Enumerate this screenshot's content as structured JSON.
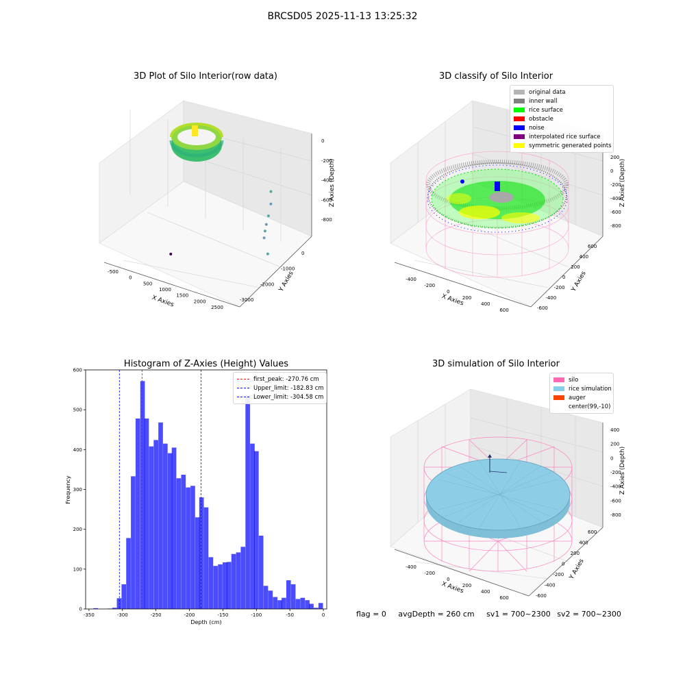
{
  "figure": {
    "suptitle": "BRCSD05 2025-11-13 13:25:32",
    "status": {
      "flag": "flag = 0",
      "avg_depth": "avgDepth = 260 cm",
      "sv1": "sv1 = 700~2300",
      "sv2": "sv2 = 700~2300"
    }
  },
  "chart_data": [
    {
      "type": "scatter",
      "title": "3D Plot of Silo Interior(row data)",
      "xlabel": "X Axies",
      "ylabel": "Y Axies",
      "zlabel": "Z Axies (Depth)",
      "x_ticks": [
        "-500",
        "0",
        "500",
        "1000",
        "1500",
        "2000",
        "2500"
      ],
      "y_ticks": [
        "-3000",
        "-2000",
        "-1000",
        "0"
      ],
      "z_ticks": [
        "0",
        "-200",
        "-400",
        "-600",
        "-800"
      ],
      "colormap": "viridis",
      "outlier_points": [
        {
          "x": 2150,
          "y": -500,
          "z": -430
        },
        {
          "x": 2200,
          "y": -600,
          "z": -520
        },
        {
          "x": 2300,
          "y": -900,
          "z": -560
        },
        {
          "x": 2300,
          "y": -1000,
          "z": -620
        },
        {
          "x": 2320,
          "y": -1100,
          "z": -660
        },
        {
          "x": 2350,
          "y": -1200,
          "z": -700
        },
        {
          "x": 2600,
          "y": -1500,
          "z": -760
        },
        {
          "x": 700,
          "y": -2500,
          "z": -800
        }
      ]
    },
    {
      "type": "scatter",
      "title": "3D classify of Silo Interior",
      "xlabel": "X Axies",
      "ylabel": "Y Axies",
      "zlabel": "Z Axies (Depth)",
      "x_ticks": [
        "-400",
        "-200",
        "0",
        "200",
        "400",
        "600"
      ],
      "y_ticks": [
        "-600",
        "-400",
        "-200",
        "0",
        "200",
        "400",
        "600"
      ],
      "z_ticks": [
        "200",
        "0",
        "-200",
        "-400",
        "-600",
        "-800"
      ],
      "legend": [
        {
          "label": "original data",
          "color": "#b4b4b4"
        },
        {
          "label": "inner wall",
          "color": "#808080"
        },
        {
          "label": "rice surface",
          "color": "#00ff00"
        },
        {
          "label": "obstacle",
          "color": "#ff0000"
        },
        {
          "label": "noise",
          "color": "#0000ff"
        },
        {
          "label": "interpolated rice surface",
          "color": "#800080"
        },
        {
          "label": "symmetric generated points",
          "color": "#ffff00"
        }
      ]
    },
    {
      "type": "bar",
      "title": "Histogram of Z-Axies (Height) Values",
      "xlabel": "Depth (cm)",
      "ylabel": "Frequency",
      "xlim": [
        -355,
        5
      ],
      "ylim": [
        0,
        600
      ],
      "x_ticks": [
        -350,
        -300,
        -250,
        -200,
        -150,
        -100,
        -50,
        0
      ],
      "y_ticks": [
        0,
        100,
        200,
        300,
        400,
        500,
        600
      ],
      "bar_color": "#0000ff",
      "bin_width": 6.8,
      "bins": [
        {
          "x": -340,
          "count": 2
        },
        {
          "x": -333,
          "count": 0
        },
        {
          "x": -326,
          "count": 0
        },
        {
          "x": -319,
          "count": 1
        },
        {
          "x": -312,
          "count": 3
        },
        {
          "x": -305,
          "count": 27
        },
        {
          "x": -298,
          "count": 62
        },
        {
          "x": -291,
          "count": 178
        },
        {
          "x": -284,
          "count": 333
        },
        {
          "x": -277,
          "count": 478
        },
        {
          "x": -270,
          "count": 572
        },
        {
          "x": -264,
          "count": 478
        },
        {
          "x": -257,
          "count": 408
        },
        {
          "x": -250,
          "count": 424
        },
        {
          "x": -243,
          "count": 468
        },
        {
          "x": -236,
          "count": 415
        },
        {
          "x": -229,
          "count": 391
        },
        {
          "x": -223,
          "count": 405
        },
        {
          "x": -216,
          "count": 328
        },
        {
          "x": -209,
          "count": 337
        },
        {
          "x": -202,
          "count": 305
        },
        {
          "x": -195,
          "count": 309
        },
        {
          "x": -188,
          "count": 230
        },
        {
          "x": -182,
          "count": 280
        },
        {
          "x": -175,
          "count": 255
        },
        {
          "x": -168,
          "count": 130
        },
        {
          "x": -161,
          "count": 108
        },
        {
          "x": -154,
          "count": 112
        },
        {
          "x": -147,
          "count": 117
        },
        {
          "x": -141,
          "count": 118
        },
        {
          "x": -134,
          "count": 138
        },
        {
          "x": -127,
          "count": 142
        },
        {
          "x": -120,
          "count": 156
        },
        {
          "x": -113,
          "count": 536
        },
        {
          "x": -106,
          "count": 415
        },
        {
          "x": -100,
          "count": 396
        },
        {
          "x": -93,
          "count": 184
        },
        {
          "x": -86,
          "count": 58
        },
        {
          "x": -79,
          "count": 46
        },
        {
          "x": -72,
          "count": 30
        },
        {
          "x": -65,
          "count": 22
        },
        {
          "x": -59,
          "count": 28
        },
        {
          "x": -52,
          "count": 72
        },
        {
          "x": -45,
          "count": 62
        },
        {
          "x": -38,
          "count": 25
        },
        {
          "x": -31,
          "count": 28
        },
        {
          "x": -24,
          "count": 22
        },
        {
          "x": -18,
          "count": 13
        },
        {
          "x": -11,
          "count": 3
        },
        {
          "x": -4,
          "count": 15
        }
      ],
      "vlines": [
        {
          "label": "first_peak: -270.76 cm",
          "x": -270.76,
          "color": "#ff0000"
        },
        {
          "label": "Upper_limit: -182.83 cm",
          "x": -182.83,
          "color": "#0000ff"
        },
        {
          "label": "Lower_limit: -304.58 cm",
          "x": -304.58,
          "color": "#0000ff"
        }
      ],
      "legend_position": "top-right"
    },
    {
      "type": "scatter",
      "title": "3D simulation of Silo Interior",
      "xlabel": "X Axies",
      "ylabel": "Y Axies",
      "zlabel": "Z Axies (Depth)",
      "x_ticks": [
        "-400",
        "-200",
        "0",
        "200",
        "400",
        "600"
      ],
      "y_ticks": [
        "-600",
        "-400",
        "-200",
        "0",
        "200",
        "400",
        "600"
      ],
      "z_ticks": [
        "400",
        "200",
        "0",
        "-200",
        "-400",
        "-600",
        "-800"
      ],
      "legend": [
        {
          "label": "silo",
          "color": "#ff69b4"
        },
        {
          "label": "rice simulation",
          "color": "#87ceeb"
        },
        {
          "label": "auger",
          "color": "#ff4500"
        },
        {
          "label": "center(99,-10)",
          "color": "#ffffff"
        }
      ]
    }
  ]
}
